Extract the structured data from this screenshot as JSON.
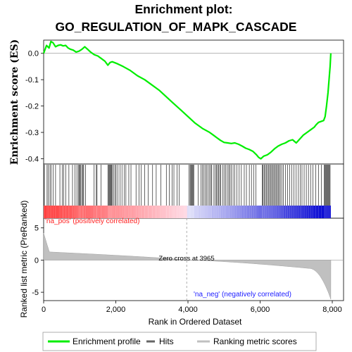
{
  "chart_data": {
    "type": "line",
    "title_line1": "Enrichment plot:",
    "title_line2": "GO_REGULATION_OF_MAPK_CASCADE",
    "es_ylabel": "Enrichment score (ES)",
    "metric_ylabel": "Ranked list metric (PreRanked)",
    "xlabel": "Rank in Ordered Dataset",
    "xlim": [
      0,
      8000
    ],
    "x_ticks": [
      "0",
      "2,000",
      "4,000",
      "6,000",
      "8,000"
    ],
    "x_tick_values": [
      0,
      2000,
      4000,
      6000,
      8000
    ],
    "es_ylim": [
      -0.42,
      0.05
    ],
    "es_ticks": [
      "0.0",
      "-0.1",
      "-0.2",
      "-0.3",
      "-0.4"
    ],
    "es_tick_values": [
      0.0,
      -0.1,
      -0.2,
      -0.3,
      -0.4
    ],
    "metric_ylim": [
      -6.3,
      6.5
    ],
    "metric_ticks": [
      "5",
      "0",
      "-5"
    ],
    "metric_tick_values": [
      5,
      0,
      -5
    ],
    "zero_cross_text": "Zero cross at 3965",
    "zero_cross": 3965,
    "pos_label": "'na_pos' (positively correlated)",
    "neg_label": "'na_neg' (negatively correlated)",
    "legend": [
      "Enrichment profile",
      "Hits",
      "Ranking metric scores"
    ],
    "colors": {
      "profile": "#00ee00",
      "hits": "#000000",
      "metric": "#c0c0c0",
      "pos_text": "#ff2020",
      "neg_text": "#2020ff"
    },
    "es_profile": {
      "x": [
        0,
        80,
        150,
        200,
        260,
        330,
        400,
        470,
        540,
        610,
        680,
        750,
        820,
        900,
        980,
        1060,
        1140,
        1220,
        1300,
        1400,
        1500,
        1600,
        1700,
        1780,
        1840,
        1900,
        1960,
        2050,
        2200,
        2400,
        2600,
        2800,
        3000,
        3200,
        3400,
        3600,
        3800,
        4000,
        4200,
        4400,
        4600,
        4700,
        4800,
        4900,
        5000,
        5100,
        5200,
        5300,
        5400,
        5500,
        5600,
        5700,
        5800,
        5900,
        5960,
        6020,
        6100,
        6200,
        6300,
        6400,
        6500,
        6600,
        6700,
        6800,
        6900,
        7000,
        7100,
        7200,
        7300,
        7400,
        7500,
        7560,
        7620,
        7700,
        7760,
        7800,
        7840,
        7880,
        7910,
        7940,
        7960
      ],
      "y": [
        0.0,
        0.03,
        0.02,
        0.045,
        0.04,
        0.025,
        0.03,
        0.032,
        0.028,
        0.03,
        0.02,
        0.015,
        0.012,
        0.005,
        0.008,
        0.015,
        0.025,
        0.015,
        0.005,
        -0.005,
        -0.01,
        -0.02,
        -0.03,
        -0.045,
        -0.035,
        -0.032,
        -0.035,
        -0.04,
        -0.05,
        -0.065,
        -0.085,
        -0.1,
        -0.12,
        -0.14,
        -0.165,
        -0.19,
        -0.215,
        -0.24,
        -0.265,
        -0.285,
        -0.3,
        -0.31,
        -0.32,
        -0.33,
        -0.338,
        -0.34,
        -0.342,
        -0.34,
        -0.345,
        -0.352,
        -0.36,
        -0.365,
        -0.372,
        -0.385,
        -0.395,
        -0.4,
        -0.39,
        -0.385,
        -0.375,
        -0.362,
        -0.352,
        -0.345,
        -0.34,
        -0.332,
        -0.328,
        -0.34,
        -0.325,
        -0.31,
        -0.3,
        -0.29,
        -0.28,
        -0.27,
        -0.262,
        -0.258,
        -0.255,
        -0.24,
        -0.2,
        -0.15,
        -0.1,
        -0.05,
        0.0
      ]
    },
    "hits": [
      20,
      95,
      130,
      175,
      210,
      260,
      330,
      450,
      520,
      560,
      610,
      700,
      800,
      870,
      920,
      960,
      990,
      1010,
      1030,
      1060,
      1090,
      1110,
      1160,
      1400,
      1460,
      1480,
      1590,
      1780,
      1800,
      1820,
      1840,
      1860,
      1880,
      1900,
      1940,
      1980,
      2010,
      2060,
      2120,
      2170,
      2230,
      2280,
      2360,
      2420,
      2560,
      2640,
      2700,
      2800,
      2900,
      3020,
      3120,
      3250,
      3400,
      3480,
      3560,
      3610,
      3700,
      3760,
      4030,
      4060,
      4080,
      4100,
      4120,
      4140,
      4160,
      4280,
      4360,
      4400,
      4440,
      4480,
      4520,
      4560,
      4600,
      4630,
      4660,
      4720,
      4760,
      4790,
      4820,
      4850,
      4880,
      4910,
      4960,
      5000,
      5040,
      5090,
      5130,
      5160,
      5200,
      5250,
      5300,
      5360,
      5420,
      5480,
      5560,
      5620,
      5700,
      5760,
      5820,
      5880,
      6060,
      6080,
      6110,
      6140,
      6170,
      6200,
      6230,
      6260,
      6290,
      6320,
      6350,
      6380,
      6410,
      6440,
      6470,
      6500,
      6530,
      6560,
      6600,
      6640,
      6700,
      6760,
      6820,
      6880,
      6940,
      7000,
      7060,
      7110,
      7160,
      7220,
      7280,
      7340,
      7400,
      7460,
      7540,
      7620,
      7700,
      7780,
      7800,
      7820,
      7840,
      7860,
      7880,
      7900,
      7920,
      7940
    ]
  }
}
